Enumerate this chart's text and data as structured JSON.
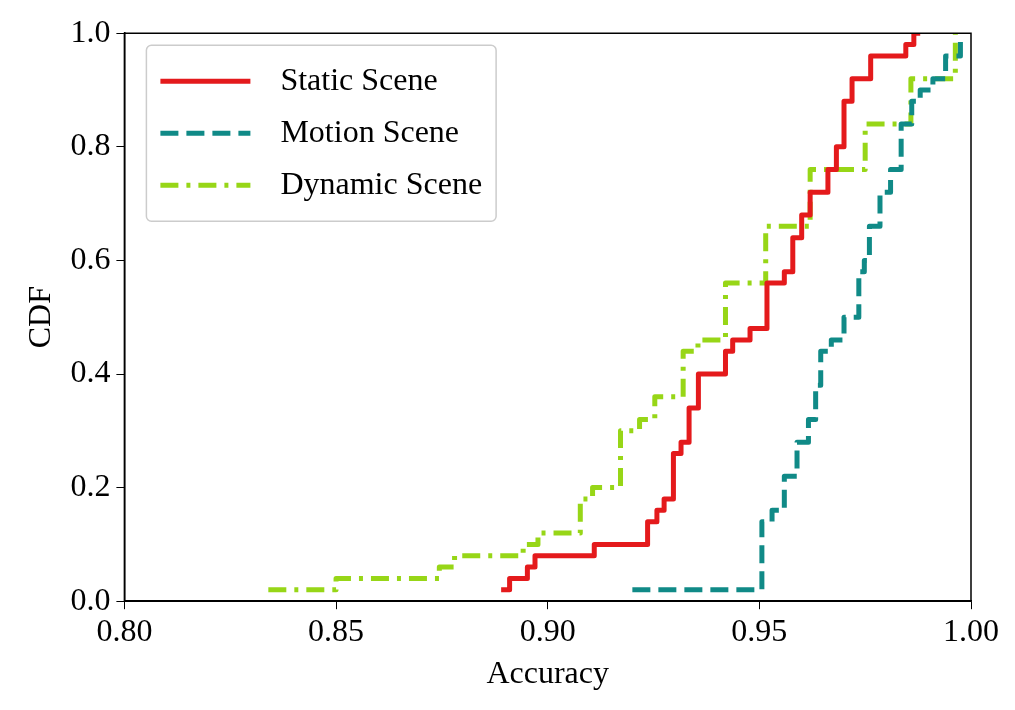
{
  "chart_data": {
    "type": "step",
    "xlabel": "Accuracy",
    "ylabel": "CDF",
    "xlim": [
      0.8,
      1.0
    ],
    "ylim": [
      0,
      1
    ],
    "xticks": [
      {
        "value": 0.8,
        "label": "0.80"
      },
      {
        "value": 0.85,
        "label": "0.85"
      },
      {
        "value": 0.9,
        "label": "0.90"
      },
      {
        "value": 0.95,
        "label": "0.95"
      },
      {
        "value": 1.0,
        "label": "1.00"
      }
    ],
    "yticks": [
      {
        "value": 0,
        "label": "0.0"
      },
      {
        "value": 0.2,
        "label": "0.2"
      },
      {
        "value": 0.4,
        "label": "0.4"
      },
      {
        "value": 0.6,
        "label": "0.6"
      },
      {
        "value": 0.8,
        "label": "0.8"
      },
      {
        "value": 1.0,
        "label": "1.0"
      }
    ],
    "grid": false,
    "legend": "top left",
    "marker": "none",
    "series": [
      {
        "name": "Static Scene",
        "color": "#e41a1c",
        "line_style": "solid",
        "x": [
          0.889,
          0.891,
          0.8952,
          0.897,
          0.911,
          0.9236,
          0.9258,
          0.9275,
          0.9297,
          0.9315,
          0.9334,
          0.9356,
          0.942,
          0.9437,
          0.9478,
          0.9518,
          0.9559,
          0.9579,
          0.96,
          0.962,
          0.9662,
          0.9682,
          0.97,
          0.9719,
          0.9763,
          0.9846,
          0.9865,
          0.988
        ],
        "values": [
          0.02,
          0.04,
          0.06,
          0.08,
          0.1,
          0.14,
          0.16,
          0.18,
          0.26,
          0.28,
          0.34,
          0.4,
          0.44,
          0.46,
          0.48,
          0.56,
          0.58,
          0.64,
          0.68,
          0.72,
          0.76,
          0.8,
          0.88,
          0.92,
          0.96,
          0.98,
          1.0,
          1.0
        ]
      },
      {
        "name": "Motion Scene",
        "color": "#108a87",
        "line_style": "dashed",
        "x": [
          0.92,
          0.9506,
          0.953,
          0.9559,
          0.9589,
          0.9616,
          0.9633,
          0.9645,
          0.967,
          0.97,
          0.9735,
          0.9748,
          0.976,
          0.9785,
          0.981,
          0.9835,
          0.986,
          0.988,
          0.991,
          0.994,
          0.9975
        ],
        "values": [
          0.02,
          0.14,
          0.16,
          0.22,
          0.28,
          0.32,
          0.38,
          0.44,
          0.46,
          0.5,
          0.58,
          0.6,
          0.66,
          0.72,
          0.76,
          0.84,
          0.88,
          0.9,
          0.92,
          0.96,
          1.0
        ]
      },
      {
        "name": "Dynamic Scene",
        "color": "#97d617",
        "line_style": "dashdot",
        "x": [
          0.834,
          0.85,
          0.8744,
          0.878,
          0.8942,
          0.8977,
          0.9077,
          0.9106,
          0.9172,
          0.9217,
          0.9253,
          0.932,
          0.9355,
          0.942,
          0.9515,
          0.962,
          0.975,
          0.9858,
          0.9963
        ],
        "values": [
          0.02,
          0.04,
          0.06,
          0.08,
          0.1,
          0.12,
          0.18,
          0.2,
          0.3,
          0.32,
          0.36,
          0.44,
          0.46,
          0.56,
          0.66,
          0.76,
          0.84,
          0.92,
          1.0
        ]
      }
    ]
  }
}
